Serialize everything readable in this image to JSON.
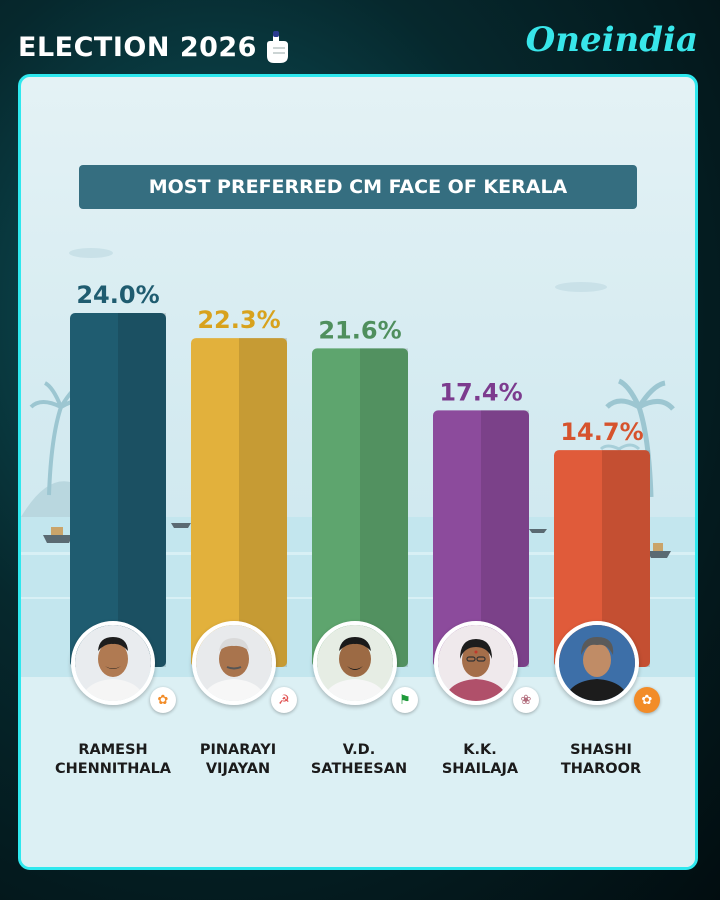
{
  "header": {
    "title": "ELECTION 2026",
    "brand": "Oneindia"
  },
  "colors": {
    "accent": "#2ee8ee",
    "bars": [
      "#1f5c70",
      "#e2b13c",
      "#5ea56e",
      "#8c4b9c",
      "#e05b3a"
    ],
    "labels": [
      "#1f5c70",
      "#d8a21d",
      "#4f8f5d",
      "#7c3b8e",
      "#d6532d"
    ]
  },
  "chart_data": {
    "type": "bar",
    "title": "MOST PREFERRED CM FACE OF KERALA",
    "categories": [
      [
        "RAMESH",
        "CHENNITHALA"
      ],
      [
        "PINARAYI",
        "VIJAYAN"
      ],
      [
        "V.D.",
        "SATHEESAN"
      ],
      [
        "K.K.",
        "SHAILAJA"
      ],
      [
        "SHASHI",
        "THAROOR"
      ]
    ],
    "values": [
      24.0,
      22.3,
      21.6,
      17.4,
      14.7
    ],
    "value_labels": [
      "24.0%",
      "22.3%",
      "21.6%",
      "17.4%",
      "14.7%"
    ],
    "party_icons": [
      "bjp-lotus-icon",
      "cpim-icon",
      "iuml-flag-icon",
      "cpim-icon",
      "bjp-lotus-icon"
    ],
    "ylim": [
      0,
      24.0
    ],
    "grid": false
  }
}
